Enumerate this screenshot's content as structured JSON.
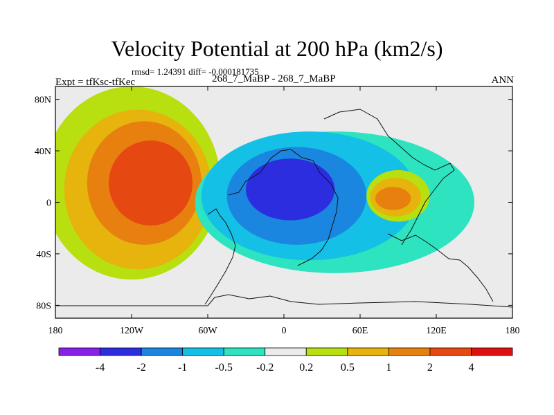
{
  "chart_data": {
    "type": "contour-map",
    "title": "Velocity Potential at 200 hPa (km2/s)",
    "stats": "rmsd= 1.24391 diff= -0.000181735",
    "left_label": "Expt = tfKsc-tfKec",
    "center_label": "268_7_MaBP - 268_7_MaBP",
    "right_label": "ANN",
    "x_ticks": [
      "180",
      "120W",
      "60W",
      "0",
      "60E",
      "120E",
      "180"
    ],
    "x_range": [
      -180,
      180
    ],
    "y_ticks": [
      "80N",
      "40N",
      "0",
      "40S",
      "80S"
    ],
    "y_range": [
      -90,
      90
    ],
    "colorbar": {
      "levels": [
        "-4",
        "-2",
        "-1",
        "-0.5",
        "-0.2",
        "0.2",
        "0.5",
        "1",
        "2",
        "4"
      ],
      "colors": [
        "#8a1fe8",
        "#2d2de0",
        "#1a86e0",
        "#14c0e6",
        "#2ee3c0",
        "#ebebeb",
        "#b8df10",
        "#e6b40c",
        "#e88010",
        "#e64812",
        "#e01010"
      ]
    },
    "fields": [
      {
        "name": "positive-anomaly-west",
        "bands": [
          {
            "level": "0.2",
            "lon": -120,
            "lat": 15,
            "rlon": 70,
            "rlat": 75
          },
          {
            "level": "0.5",
            "lon": -115,
            "lat": 10,
            "rlon": 58,
            "rlat": 62
          },
          {
            "level": "1",
            "lon": -110,
            "lat": 15,
            "rlon": 45,
            "rlat": 48
          },
          {
            "level": "2",
            "lon": -105,
            "lat": 15,
            "rlon": 33,
            "rlat": 33
          }
        ]
      },
      {
        "name": "negative-anomaly-central",
        "bands": [
          {
            "level": "-0.2",
            "lon": 40,
            "lat": 0,
            "rlon": 110,
            "rlat": 55
          },
          {
            "level": "-0.5",
            "lon": 20,
            "lat": 5,
            "rlon": 85,
            "rlat": 50
          },
          {
            "level": "-1",
            "lon": 10,
            "lat": 5,
            "rlon": 55,
            "rlat": 38
          },
          {
            "level": "-2",
            "lon": 5,
            "lat": 10,
            "rlon": 35,
            "rlat": 24
          }
        ]
      },
      {
        "name": "positive-anomaly-indian-ocean",
        "bands": [
          {
            "level": "0.2",
            "lon": 90,
            "lat": 5,
            "rlon": 25,
            "rlat": 20
          },
          {
            "level": "0.5",
            "lon": 88,
            "lat": 4,
            "rlon": 20,
            "rlat": 15
          },
          {
            "level": "1",
            "lon": 86,
            "lat": 3,
            "rlon": 14,
            "rlat": 9
          }
        ]
      }
    ]
  }
}
